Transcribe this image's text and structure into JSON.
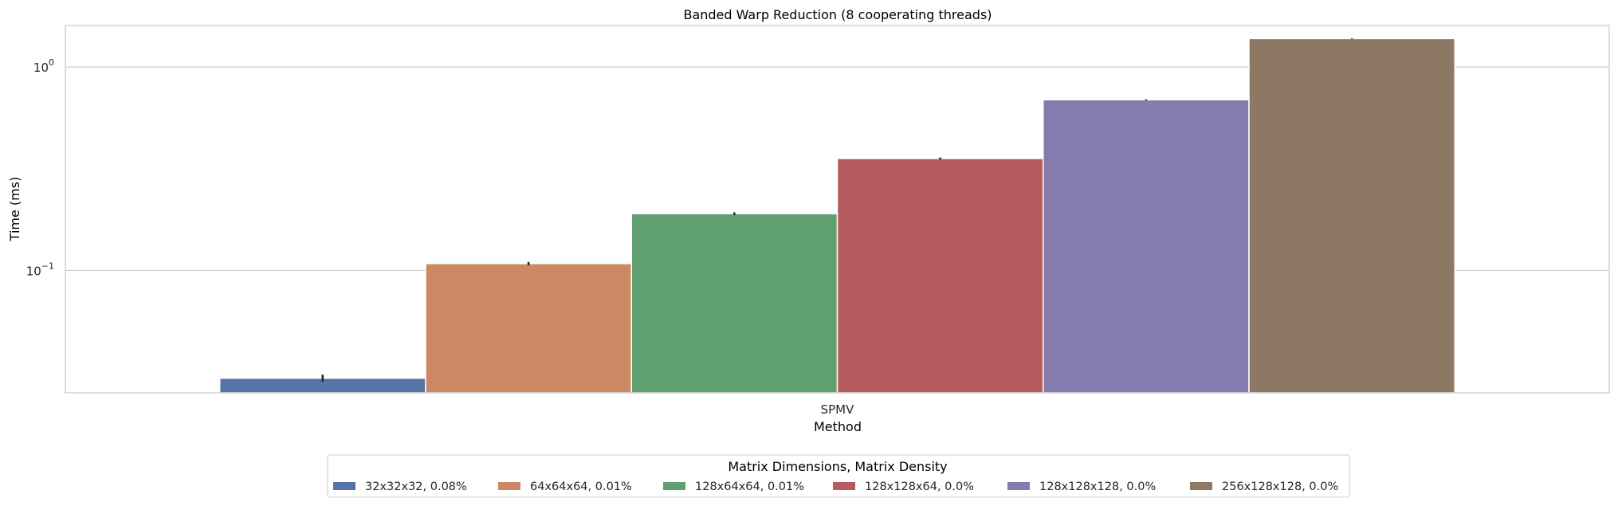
{
  "chart_data": {
    "type": "bar",
    "title": "Banded Warp Reduction (8 cooperating threads)",
    "xlabel": "Method",
    "ylabel": "Time (ms)",
    "yscale": "log",
    "ylim": [
      0.025,
      1.6
    ],
    "categories": [
      "SPMV"
    ],
    "yticks": [
      {
        "value": 0.1,
        "base": "10",
        "exp": "−1"
      },
      {
        "value": 1,
        "base": "10",
        "exp": "0"
      }
    ],
    "grid": "horizontal",
    "legend": {
      "title": "Matrix Dimensions, Matrix Density",
      "placement": "bottom-center",
      "ncol": 6
    },
    "series": [
      {
        "name": "32x32x32, 0.08%",
        "values": [
          0.0295
        ],
        "error": [
          0.0012
        ],
        "color": "#5874a7"
      },
      {
        "name": "64x64x64, 0.01%",
        "values": [
          0.108
        ],
        "error": [
          0.002
        ],
        "color": "#cb8863"
      },
      {
        "name": "128x64x64, 0.01%",
        "values": [
          0.19
        ],
        "error": [
          0.003
        ],
        "color": "#609f6f"
      },
      {
        "name": "128x128x64, 0.0%",
        "values": [
          0.355
        ],
        "error": [
          0.004
        ],
        "color": "#b65c5f"
      },
      {
        "name": "128x128x128, 0.0%",
        "values": [
          0.69
        ],
        "error": [
          0.004
        ],
        "color": "#857bac"
      },
      {
        "name": "256x128x128, 0.0%",
        "values": [
          1.38
        ],
        "error": [
          0.005
        ],
        "color": "#8d7864"
      }
    ]
  }
}
